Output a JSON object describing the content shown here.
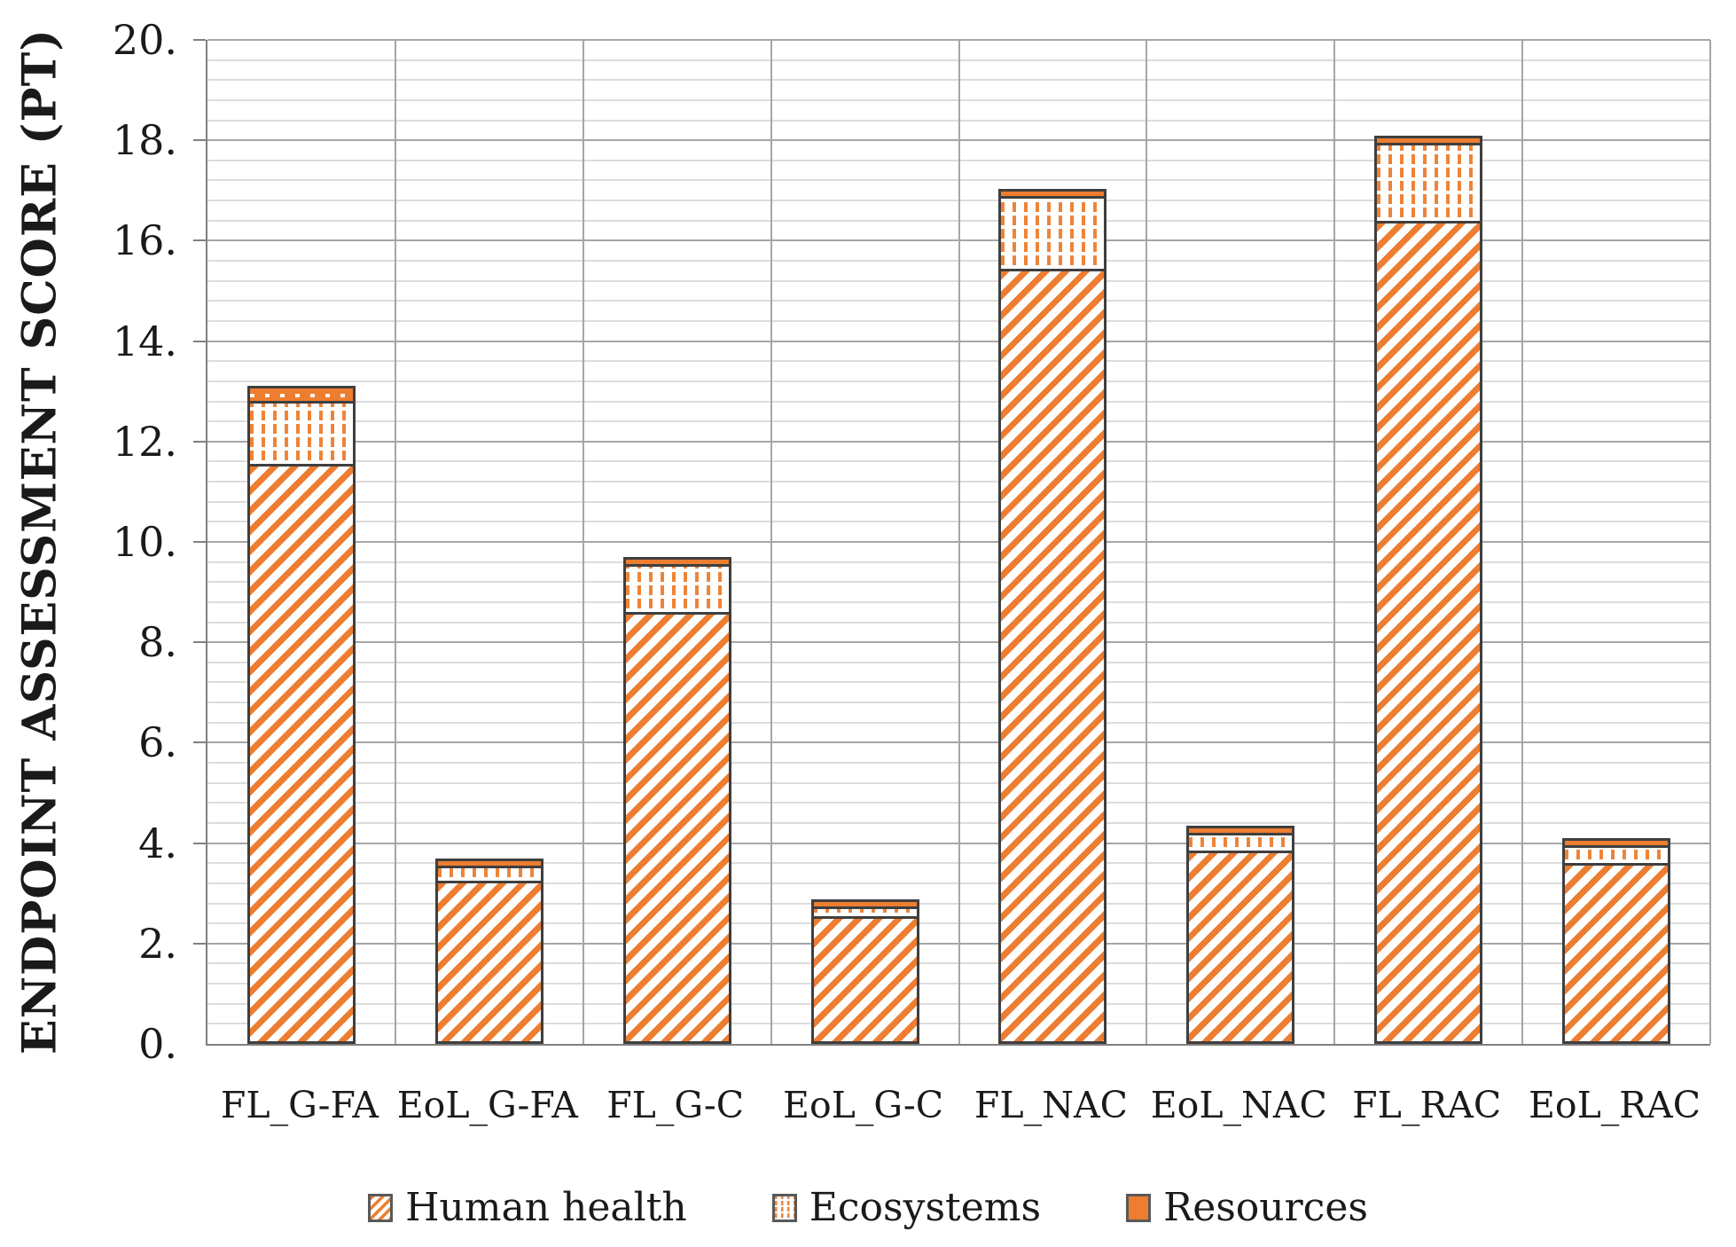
{
  "chart_data": {
    "type": "bar",
    "stacked": true,
    "title": "",
    "xlabel": "",
    "ylabel": "ENDPOINT ASSESSMENT SCORE (PT)",
    "ylim": [
      0,
      20
    ],
    "y_major_unit": 2,
    "y_minor_unit": 0.4,
    "y_tick_labels": [
      "0.",
      "2.",
      "4.",
      "6.",
      "8.",
      "10.",
      "12.",
      "14.",
      "16.",
      "18.",
      "20."
    ],
    "grid": "horizontal major+minor gridlines, vertical category separator lines",
    "legend_position": "bottom",
    "categories": [
      "FL_G-FA",
      "EoL_G-FA",
      "FL_G-C",
      "EoL_G-C",
      "FL_NAC",
      "EoL_NAC",
      "FL_RAC",
      "EoL_RAC"
    ],
    "series": [
      {
        "name": "Human health",
        "pattern": "diagonal-stripes",
        "color": "#ED7D31",
        "values": [
          11.55,
          3.25,
          8.6,
          2.55,
          15.45,
          3.85,
          16.4,
          3.6
        ]
      },
      {
        "name": "Ecosystems",
        "pattern": "vertical-dashes",
        "color": "#ED7D31",
        "values": [
          1.3,
          0.35,
          1.0,
          0.25,
          1.5,
          0.4,
          1.6,
          0.4
        ]
      },
      {
        "name": "Resources",
        "pattern": "solid",
        "color": "#ED7D31",
        "values": [
          0.35,
          0.2,
          0.2,
          0.2,
          0.2,
          0.2,
          0.2,
          0.2
        ]
      }
    ],
    "stack_totals": [
      13.2,
      3.8,
      9.8,
      3.0,
      17.15,
      4.45,
      18.2,
      4.2
    ],
    "colors": {
      "bar_fill": "#ED7D31",
      "segment_border": "#3F3F3F",
      "minor_gridline": "#DCDCDC",
      "major_gridline": "#A6A6A6",
      "axis_line": "#808080",
      "text": "#1A1A1A",
      "background": "#FFFFFF"
    }
  }
}
